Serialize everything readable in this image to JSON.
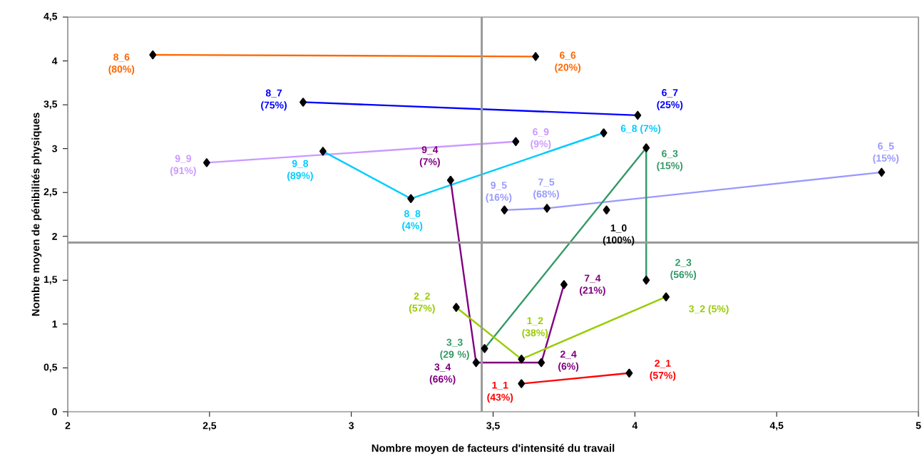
{
  "chart_data": {
    "type": "line",
    "xlabel": "Nombre moyen de facteurs d'intensité du travail",
    "ylabel": "Nombre moyen de pénibilités physiques",
    "xlim": [
      2,
      5
    ],
    "ylim": [
      0,
      4.5
    ],
    "xticks": [
      2,
      {
        "value": 2.5,
        "label": "2,5"
      },
      3,
      {
        "value": 3.5,
        "label": "3,5"
      },
      4,
      {
        "value": 4.5,
        "label": "4,5"
      },
      5
    ],
    "yticks": [
      0,
      {
        "value": 0.5,
        "label": "0,5"
      },
      1,
      {
        "value": 1.5,
        "label": "1,5"
      },
      2,
      {
        "value": 2.5,
        "label": "2,5"
      },
      3,
      {
        "value": 3.5,
        "label": "3,5"
      },
      4,
      {
        "value": 4.5,
        "label": "4,5"
      }
    ],
    "grid": false,
    "marker": "diamond",
    "line_style": "solid",
    "ref_lines": [
      {
        "axis": "x",
        "value": 3.46,
        "color": "#999999"
      },
      {
        "axis": "y",
        "value": 1.93,
        "color": "#999999"
      }
    ],
    "series": [
      {
        "color": "#ff6600",
        "x": [
          2.3,
          3.65
        ],
        "values": [
          4.07,
          4.05
        ]
      },
      {
        "color": "#0000ff",
        "x": [
          2.83,
          4.01
        ],
        "values": [
          3.53,
          3.38
        ]
      },
      {
        "color": "#cc99ff",
        "x": [
          2.49,
          3.58
        ],
        "values": [
          2.84,
          3.08
        ]
      },
      {
        "color": "#00ccff",
        "x": [
          2.9,
          3.21,
          3.89
        ],
        "values": [
          2.97,
          2.43,
          3.18
        ]
      },
      {
        "color": "#9999ff",
        "x": [
          3.54,
          3.69,
          4.87
        ],
        "values": [
          2.3,
          2.32,
          2.73
        ]
      },
      {
        "color": "#000000",
        "x": [
          3.9
        ],
        "values": [
          2.3
        ]
      },
      {
        "color": "#339966",
        "x": [
          3.47,
          4.04,
          4.04
        ],
        "values": [
          0.72,
          3.01,
          1.5
        ]
      },
      {
        "color": "#800080",
        "x": [
          3.35,
          3.44,
          3.67,
          3.75
        ],
        "values": [
          2.64,
          0.56,
          0.56,
          1.45
        ]
      },
      {
        "color": "#99cc00",
        "x": [
          3.37,
          3.6,
          4.11
        ],
        "values": [
          1.19,
          0.6,
          1.31
        ]
      },
      {
        "color": "#ff0000",
        "x": [
          3.6,
          3.98
        ],
        "values": [
          0.32,
          0.44
        ]
      }
    ],
    "annotations": [
      {
        "text": "8_6 (80%)",
        "x": 2.3,
        "y": 4.07
      },
      {
        "text": "6_6 (20%)",
        "x": 3.65,
        "y": 4.05
      },
      {
        "text": "8_7 (75%)",
        "x": 2.83,
        "y": 3.53
      },
      {
        "text": "6_7 (25%)",
        "x": 4.01,
        "y": 3.38
      },
      {
        "text": "9_9 (91%)",
        "x": 2.49,
        "y": 2.84
      },
      {
        "text": "6_9 (9%)",
        "x": 3.58,
        "y": 3.08
      },
      {
        "text": "9_8 (89%)",
        "x": 2.9,
        "y": 2.97
      },
      {
        "text": "8_8 (4%)",
        "x": 3.21,
        "y": 2.43
      },
      {
        "text": "6_8 (7%)",
        "x": 3.89,
        "y": 3.18
      },
      {
        "text": "9_5 (16%)",
        "x": 3.54,
        "y": 2.3
      },
      {
        "text": "7_5 (68%)",
        "x": 3.69,
        "y": 2.32
      },
      {
        "text": "6_5 (15%)",
        "x": 4.87,
        "y": 2.73
      },
      {
        "text": "1_0 (100%)",
        "x": 3.9,
        "y": 2.3
      },
      {
        "text": "3_3 (29 %)",
        "x": 3.47,
        "y": 0.72
      },
      {
        "text": "6_3 (15%)",
        "x": 4.04,
        "y": 3.01
      },
      {
        "text": "2_3 (56%)",
        "x": 4.04,
        "y": 1.5
      },
      {
        "text": "9_4 (7%)",
        "x": 3.35,
        "y": 2.64
      },
      {
        "text": "3_4 (66%)",
        "x": 3.44,
        "y": 0.56
      },
      {
        "text": "2_4 (6%)",
        "x": 3.67,
        "y": 0.56
      },
      {
        "text": "7_4 (21%)",
        "x": 3.75,
        "y": 1.45
      },
      {
        "text": "2_2 (57%)",
        "x": 3.37,
        "y": 1.19
      },
      {
        "text": "1_2 (38%)",
        "x": 3.6,
        "y": 0.6
      },
      {
        "text": "3_2 (5%)",
        "x": 4.11,
        "y": 1.31
      },
      {
        "text": "1_1 (43%)",
        "x": 3.6,
        "y": 0.32
      },
      {
        "text": "2_1 (57%)",
        "x": 3.98,
        "y": 0.44
      }
    ]
  }
}
